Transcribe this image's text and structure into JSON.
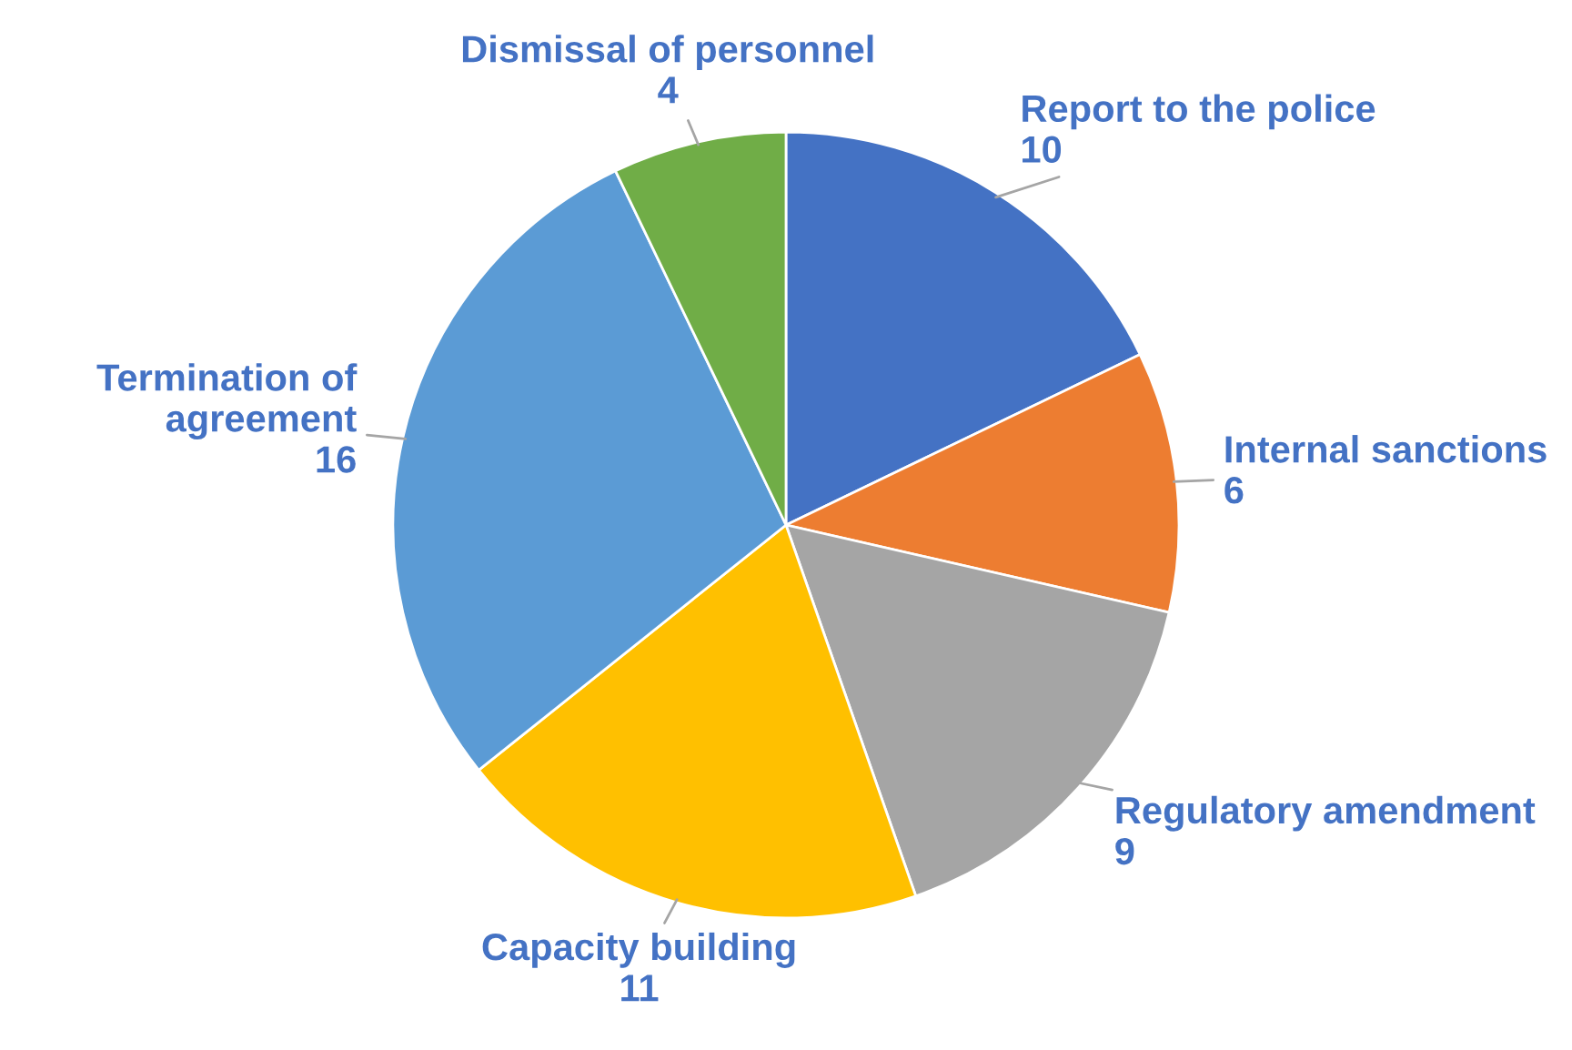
{
  "chart_data": {
    "type": "pie",
    "categories": [
      "Report to the police",
      "Internal sanctions",
      "Regulatory amendment",
      "Capacity building",
      "Termination of agreement",
      "Dismissal of personnel"
    ],
    "values": [
      10,
      6,
      9,
      11,
      16,
      4
    ],
    "colors": [
      "#4472c4",
      "#ed7d31",
      "#a5a5a5",
      "#ffc000",
      "#5b9bd5",
      "#70ad47"
    ],
    "data_labels": true,
    "legend": false
  }
}
